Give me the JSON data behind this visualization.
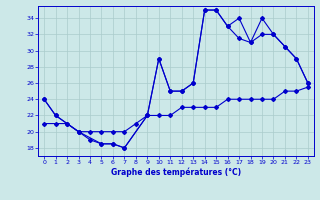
{
  "title": "Graphe des températures (°C)",
  "background_color": "#cce8e8",
  "grid_color": "#aacccc",
  "line_color": "#0000cc",
  "xlim": [
    -0.5,
    23.5
  ],
  "ylim": [
    17.0,
    35.5
  ],
  "yticks": [
    18,
    20,
    22,
    24,
    26,
    28,
    30,
    32,
    34
  ],
  "xticks": [
    0,
    1,
    2,
    3,
    4,
    5,
    6,
    7,
    8,
    9,
    10,
    11,
    12,
    13,
    14,
    15,
    16,
    17,
    18,
    19,
    20,
    21,
    22,
    23
  ],
  "line1_x": [
    0,
    1,
    2,
    3,
    4,
    5,
    6,
    7,
    9,
    10,
    11,
    12,
    13,
    14,
    15,
    16,
    17,
    18,
    19,
    20,
    21,
    22,
    23
  ],
  "line1_y": [
    24,
    22,
    21,
    20,
    19,
    18.5,
    18.5,
    18,
    22,
    29,
    25,
    25,
    26,
    35,
    35,
    33,
    31.5,
    31,
    32,
    32,
    30.5,
    29,
    26
  ],
  "line2_x": [
    0,
    1,
    3,
    5,
    6,
    7,
    9,
    10,
    11,
    12,
    13,
    14,
    15,
    16,
    17,
    18,
    19,
    20,
    21,
    22,
    23
  ],
  "line2_y": [
    24,
    22,
    20,
    18.5,
    18.5,
    18,
    22,
    29,
    25,
    25,
    26,
    35,
    35,
    33,
    34,
    31,
    34,
    32,
    30.5,
    29,
    26
  ],
  "line3_x": [
    0,
    1,
    2,
    3,
    4,
    5,
    6,
    7,
    8,
    9,
    10,
    11,
    12,
    13,
    14,
    15,
    16,
    17,
    18,
    19,
    20,
    21,
    22,
    23
  ],
  "line3_y": [
    21,
    21,
    21,
    20,
    20,
    20,
    20,
    20,
    21,
    22,
    22,
    22,
    23,
    23,
    23,
    23,
    24,
    24,
    24,
    24,
    24,
    25,
    25,
    25.5
  ]
}
